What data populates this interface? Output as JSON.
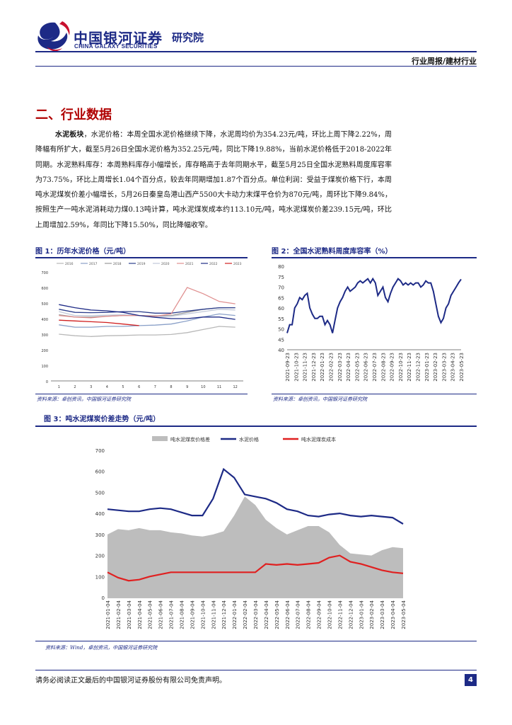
{
  "header": {
    "logo_text": "中国银河证券",
    "logo_en": "CHINA GALAXY SECURITIES",
    "institute": "研究院",
    "category": "行业周报/建材行业",
    "brand_color": "#1d2a86",
    "accent_color": "#c8102e"
  },
  "section": {
    "title": "二、行业数据"
  },
  "body": {
    "lead": "水泥板块",
    "text": "，水泥价格：本周全国水泥价格继续下降，水泥周均价为354.23元/吨，环比上周下降2.22%，周降幅有所扩大，截至5月26日全国水泥价格为352.25元/吨，同比下降19.88%，当前水泥价格低于2018-2022年同期。水泥熟料库存：本周熟料库存小幅增长，库存略高于去年同期水平，截至5月25日全国水泥熟料周度库容率为73.75%，环比上周增长1.04个百分点，较去年同期增加1.87个百分点。单位利润：受益于煤炭价格下行，本周吨水泥煤炭价差小幅增长，5月26日秦皇岛港山西产5500大卡动力末煤平仓价为870元/吨，周环比下降9.84%，按照生产一吨水泥消耗动力煤0.13吨计算，吨水泥煤炭成本约113.10元/吨，吨水泥煤炭价差239.15元/吨，环比上周增加2.59%，年同比下降15.50%，同比降幅收窄。"
  },
  "fig1": {
    "title": "图 1：历年水泥价格（元/吨）",
    "source": "资料来源：卓创资讯，中国银河证券研究院"
  },
  "fig2": {
    "title": "图 2：全国水泥熟料周度库容率（%）",
    "source": "资料来源：卓创资讯，中国银河证券研究院"
  },
  "fig3": {
    "title": "图 3：吨水泥煤炭价差走势（元/吨）",
    "source": "资料来源：Wind，卓创资讯，中国银河证券研究院"
  },
  "footer": {
    "disclaimer": "请务必阅读正文最后的中国银河证券股份有限公司免责声明。",
    "page": "4"
  },
  "chart_data": [
    {
      "type": "line",
      "title": "历年水泥价格（元/吨）",
      "x_ticks": [
        "1",
        "2",
        "3",
        "4",
        "5",
        "6",
        "7",
        "8",
        "9",
        "10",
        "11",
        "12"
      ],
      "ylim": [
        0,
        700
      ],
      "y_ticks": [
        "0",
        "100",
        "200",
        "300",
        "400",
        "500",
        "600",
        "700"
      ],
      "series": [
        {
          "name": "2016",
          "color": "#b8b8b8",
          "values": [
            300,
            290,
            285,
            290,
            292,
            295,
            295,
            298,
            310,
            330,
            350,
            345
          ]
        },
        {
          "name": "2017",
          "color": "#8aa0c8",
          "values": [
            360,
            345,
            345,
            350,
            350,
            355,
            358,
            365,
            385,
            410,
            430,
            420
          ]
        },
        {
          "name": "2018",
          "color": "#9a9a9a",
          "values": [
            425,
            410,
            410,
            415,
            420,
            420,
            418,
            420,
            440,
            460,
            470,
            470
          ]
        },
        {
          "name": "2019",
          "color": "#2c3e8c",
          "values": [
            460,
            440,
            438,
            440,
            445,
            445,
            435,
            435,
            448,
            460,
            470,
            470
          ]
        },
        {
          "name": "2020",
          "color": "#c0c8d8",
          "values": [
            445,
            420,
            420,
            422,
            425,
            420,
            412,
            415,
            430,
            445,
            460,
            455
          ]
        },
        {
          "name": "2021",
          "color": "#e09090",
          "values": [
            420,
            410,
            405,
            415,
            420,
            420,
            415,
            430,
            600,
            560,
            510,
            495
          ]
        },
        {
          "name": "2022",
          "color": "#1d2a86",
          "values": [
            490,
            470,
            455,
            450,
            440,
            420,
            408,
            400,
            400,
            410,
            410,
            395
          ]
        },
        {
          "name": "2023",
          "color": "#d01f1f",
          "values": [
            390,
            385,
            380,
            375,
            365,
            355
          ]
        }
      ]
    },
    {
      "type": "line",
      "title": "全国水泥熟料周度库容率（%）",
      "ylim": [
        40,
        80
      ],
      "y_ticks": [
        "40",
        "45",
        "50",
        "55",
        "60",
        "65",
        "70",
        "75",
        "80"
      ],
      "x_ticks": [
        "2021-09-23",
        "2021-10-23",
        "2021-11-23",
        "2021-12-23",
        "2022-01-23",
        "2022-02-23",
        "2022-03-23",
        "2022-04-23",
        "2022-05-23",
        "2022-06-23",
        "2022-07-23",
        "2022-08-23",
        "2022-09-23",
        "2022-10-23",
        "2022-11-23",
        "2022-12-23",
        "2023-01-23",
        "2023-02-23",
        "2023-03-23",
        "2023-04-23",
        "2023-05-23"
      ],
      "series": [
        {
          "name": "",
          "color": "#1d2a86",
          "values": [
            48,
            52,
            52,
            60,
            62,
            65,
            64,
            66,
            67,
            60,
            57,
            55,
            55,
            56,
            56,
            52,
            54,
            52,
            48,
            54,
            60,
            63,
            65,
            68,
            70,
            68,
            69,
            70,
            72,
            73,
            72,
            73,
            74,
            72,
            74,
            72,
            66,
            68,
            70,
            65,
            63,
            67,
            70,
            72,
            74,
            73,
            71,
            72,
            71,
            72,
            71,
            72,
            72,
            70,
            71,
            73,
            72,
            72,
            68,
            62,
            56,
            53,
            55,
            60,
            62,
            66,
            68,
            70,
            72,
            73.75
          ]
        }
      ]
    },
    {
      "type": "line",
      "title": "吨水泥煤炭价差走势（元/吨）",
      "ylim": [
        0,
        700
      ],
      "y_ticks": [
        "0",
        "100",
        "200",
        "300",
        "400",
        "500",
        "600",
        "700"
      ],
      "x_ticks": [
        "2021-01-04",
        "2021-02-04",
        "2021-03-04",
        "2021-04-04",
        "2021-05-04",
        "2021-06-04",
        "2021-07-04",
        "2021-08-04",
        "2021-09-04",
        "2021-10-04",
        "2021-11-04",
        "2021-12-04",
        "2022-01-04",
        "2022-02-04",
        "2022-03-04",
        "2022-04-04",
        "2022-05-04",
        "2022-06-04",
        "2022-07-04",
        "2022-08-04",
        "2022-09-04",
        "2022-10-04",
        "2022-11-04",
        "2022-12-04",
        "2023-01-04",
        "2023-02-04",
        "2023-03-04",
        "2023-04-04",
        "2023-05-04"
      ],
      "series": [
        {
          "name": "吨水泥煤炭价格差",
          "color": "#bdbdbd",
          "values": [
            300,
            325,
            320,
            330,
            320,
            320,
            310,
            305,
            295,
            290,
            300,
            315,
            390,
            480,
            440,
            370,
            330,
            300,
            320,
            340,
            340,
            310,
            250,
            210,
            205,
            200,
            225,
            240,
            235
          ]
        },
        {
          "name": "水泥价格",
          "color": "#1d2a86",
          "values": [
            420,
            415,
            410,
            410,
            420,
            425,
            420,
            405,
            390,
            390,
            470,
            610,
            570,
            490,
            480,
            470,
            450,
            420,
            410,
            390,
            385,
            395,
            400,
            390,
            385,
            390,
            385,
            380,
            350
          ]
        },
        {
          "name": "吨水泥煤炭成本",
          "color": "#e02020",
          "values": [
            120,
            95,
            80,
            85,
            100,
            110,
            120,
            120,
            120,
            120,
            120,
            120,
            120,
            120,
            120,
            160,
            155,
            160,
            155,
            160,
            165,
            190,
            200,
            170,
            160,
            145,
            130,
            120,
            115
          ]
        }
      ]
    }
  ]
}
